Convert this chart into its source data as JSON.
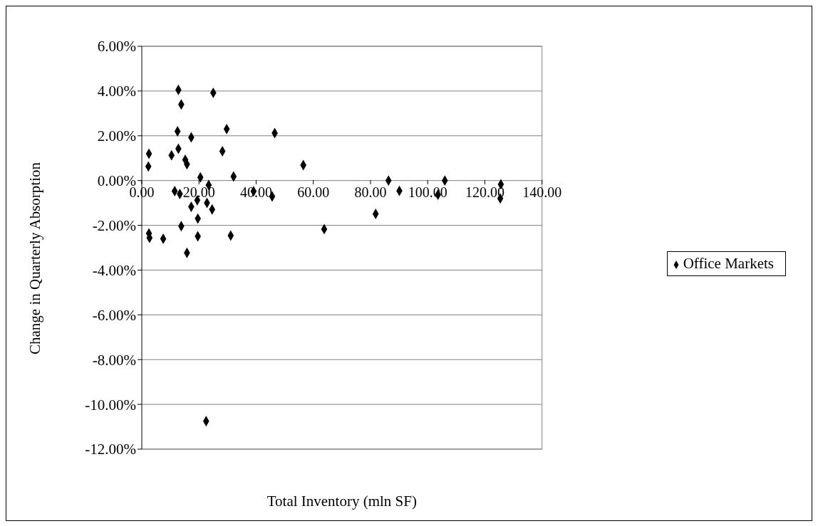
{
  "chart_data": {
    "type": "scatter",
    "xlabel": "Total Inventory (mln SF)",
    "ylabel": "Change in Quarterly Absorption",
    "xlim": [
      0,
      140
    ],
    "xticks": [
      {
        "value": 0,
        "label": "0.00"
      },
      {
        "value": 20,
        "label": "20.00"
      },
      {
        "value": 40,
        "label": "40.00"
      },
      {
        "value": 60,
        "label": "60.00"
      },
      {
        "value": 80,
        "label": "80.00"
      },
      {
        "value": 100,
        "label": "100.00"
      },
      {
        "value": 120,
        "label": "120.00"
      },
      {
        "value": 140,
        "label": "140.00"
      }
    ],
    "ylim": [
      -12,
      6
    ],
    "yticks": [
      {
        "value": 6,
        "label": "6.00%"
      },
      {
        "value": 4,
        "label": "4.00%"
      },
      {
        "value": 2,
        "label": "2.00%"
      },
      {
        "value": 0,
        "label": "0.00%"
      },
      {
        "value": -2,
        "label": "-2.00%"
      },
      {
        "value": -4,
        "label": "-4.00%"
      },
      {
        "value": -6,
        "label": "-6.00%"
      },
      {
        "value": -8,
        "label": "-8.00%"
      },
      {
        "value": -10,
        "label": "-10.00%"
      },
      {
        "value": -12,
        "label": "-12.00%"
      }
    ],
    "grid": "y",
    "legend": "right",
    "marker": "diamond",
    "series": [
      {
        "name": "Office Markets",
        "color": "#000000",
        "x": [
          12.8,
          25.0,
          13.8,
          12.5,
          29.7,
          17.3,
          2.5,
          10.4,
          12.8,
          28.2,
          2.3,
          15.2,
          15.8,
          20.5,
          32.1,
          11.5,
          13.3,
          23.4,
          19.4,
          22.8,
          17.3,
          24.6,
          19.6,
          13.8,
          2.5,
          2.7,
          7.5,
          19.6,
          31.1,
          15.8,
          22.5,
          46.5,
          56.5,
          39.1,
          45.6,
          63.8,
          81.8,
          86.3,
          90.1,
          103.6,
          106.0,
          125.6,
          125.4
        ],
        "values": [
          4.05,
          3.92,
          3.4,
          2.2,
          2.3,
          1.93,
          1.2,
          1.13,
          1.42,
          1.31,
          0.63,
          0.93,
          0.73,
          0.14,
          0.18,
          -0.47,
          -0.6,
          -0.2,
          -0.88,
          -1.0,
          -1.17,
          -1.29,
          -1.7,
          -2.04,
          -2.36,
          -2.56,
          -2.6,
          -2.49,
          -2.46,
          -3.23,
          -10.75,
          2.12,
          0.69,
          -0.48,
          -0.71,
          -2.17,
          -1.49,
          0.0,
          -0.46,
          -0.63,
          0.0,
          -0.17,
          -0.8
        ]
      }
    ]
  }
}
